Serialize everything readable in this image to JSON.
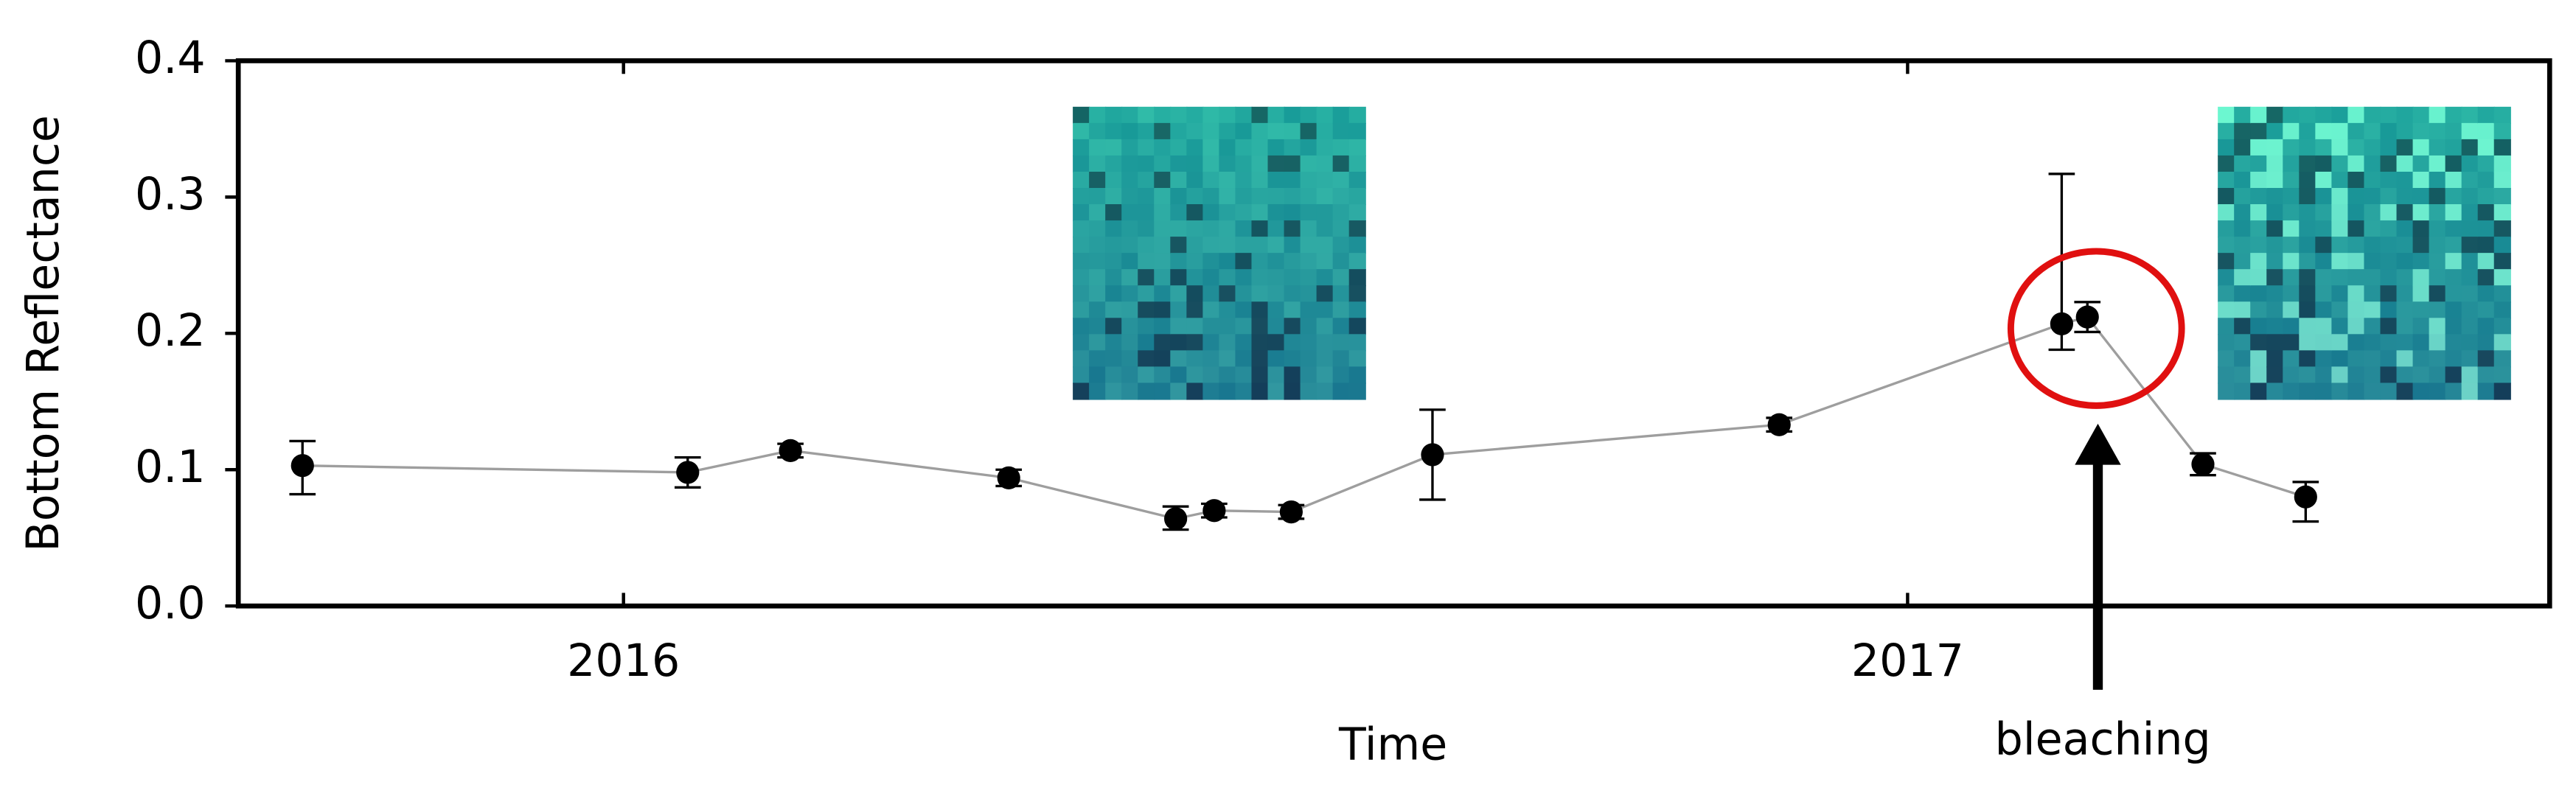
{
  "chart_data": {
    "type": "scatter",
    "x_label": "Time",
    "y_label": "Bottom Reflectance",
    "annotation": "bleaching",
    "x": [
      2015.75,
      2016.05,
      2016.13,
      2016.3,
      2016.43,
      2016.46,
      2016.52,
      2016.63,
      2016.9,
      2017.12,
      2017.14,
      2017.23,
      2017.31
    ],
    "values": [
      0.103,
      0.098,
      0.114,
      0.094,
      0.064,
      0.07,
      0.069,
      0.111,
      0.133,
      0.207,
      0.212,
      0.104,
      0.08
    ],
    "err_minus": [
      0.021,
      0.011,
      0.005,
      0.006,
      0.008,
      0.005,
      0.005,
      0.033,
      0.005,
      0.019,
      0.011,
      0.008,
      0.018
    ],
    "err_plus": [
      0.018,
      0.011,
      0.005,
      0.006,
      0.009,
      0.005,
      0.005,
      0.033,
      0.005,
      0.11,
      0.011,
      0.008,
      0.011
    ],
    "color": "#000000",
    "line_color": "#9e9e9e",
    "highlight_color": "#e01010",
    "xlim": [
      2015.7,
      2017.5
    ],
    "xticks": [
      2016,
      2017
    ],
    "ylim": [
      0,
      0.4
    ],
    "yticks": [
      {
        "value": 0,
        "label": "0.0"
      },
      0.1,
      0.2,
      0.3,
      0.4
    ]
  }
}
